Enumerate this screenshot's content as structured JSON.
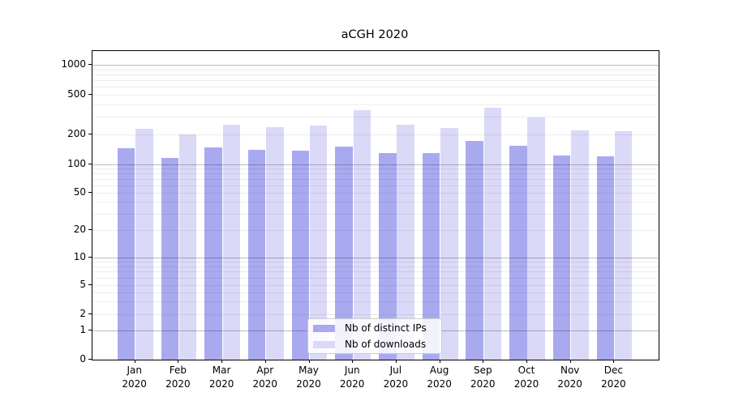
{
  "chart_data": {
    "type": "bar",
    "title": "aCGH 2020",
    "x_axis": {
      "months": [
        "Jan",
        "Feb",
        "Mar",
        "Apr",
        "May",
        "Jun",
        "Jul",
        "Aug",
        "Sep",
        "Oct",
        "Nov",
        "Dec"
      ],
      "year": "2020"
    },
    "y_axis": {
      "scale": "symlog",
      "ticks": [
        0,
        1,
        2,
        5,
        10,
        20,
        50,
        100,
        200,
        500,
        1000
      ],
      "range": [
        0,
        1400
      ]
    },
    "grid": "horizontal major and minor gridlines, log minors",
    "legend_position": "bottom center inside plot",
    "series": [
      {
        "name": "Nb of distinct IPs",
        "color": "#a9a9f0",
        "values": [
          145,
          117,
          147,
          141,
          137,
          150,
          129,
          130,
          171,
          154,
          124,
          121
        ]
      },
      {
        "name": "Nb of downloads",
        "color": "#dbd9f8",
        "values": [
          226,
          200,
          252,
          238,
          245,
          350,
          249,
          233,
          372,
          296,
          221,
          214
        ]
      }
    ]
  }
}
